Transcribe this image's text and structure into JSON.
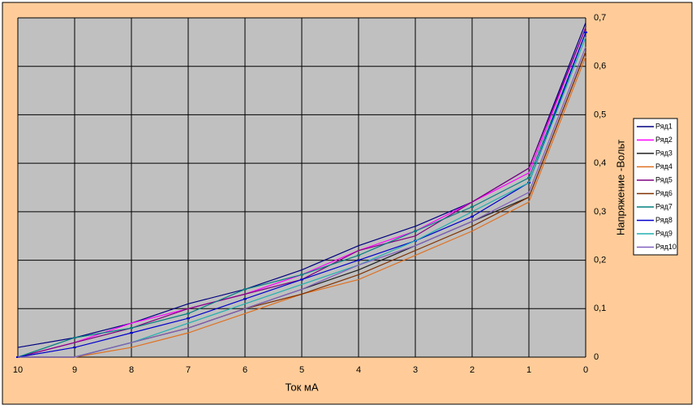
{
  "chart_data": {
    "type": "line",
    "x": [
      10,
      9,
      8,
      7,
      6,
      5,
      4,
      3,
      2,
      1,
      0
    ],
    "xlim": [
      10,
      0
    ],
    "xticks": [
      10,
      9,
      8,
      7,
      6,
      5,
      4,
      3,
      2,
      1,
      0
    ],
    "ylim": [
      0,
      0.7
    ],
    "yticks": [
      0,
      {
        "value": 0.1,
        "label": "0,1"
      },
      {
        "value": 0.2,
        "label": "0,2"
      },
      {
        "value": 0.3,
        "label": "0,3"
      },
      {
        "value": 0.4,
        "label": "0,4"
      },
      {
        "value": 0.5,
        "label": "0,5"
      },
      {
        "value": 0.6,
        "label": "0,6"
      },
      {
        "value": 0.7,
        "label": "0,7"
      }
    ],
    "x_label": "Ток мА",
    "y_label": "Напряжение -Вольт",
    "grid": true,
    "legend": "right",
    "series": [
      {
        "name": "Ряд1",
        "color": "#000080",
        "values": [
          0.02,
          0.04,
          0.07,
          0.11,
          0.14,
          0.18,
          0.23,
          0.27,
          0.32,
          0.39,
          0.69
        ]
      },
      {
        "name": "Ряд2",
        "color": "#ff00ff",
        "values": [
          0,
          0.03,
          0.07,
          0.1,
          0.13,
          0.17,
          0.22,
          0.26,
          0.32,
          0.38,
          0.68
        ]
      },
      {
        "name": "Ряд3",
        "color": "#202020",
        "values": [
          0,
          0,
          0.03,
          0.06,
          0.1,
          0.14,
          0.18,
          0.23,
          0.28,
          0.33,
          0.63
        ]
      },
      {
        "name": "Ряд4",
        "color": "#e07020",
        "values": [
          0,
          0,
          0.02,
          0.05,
          0.09,
          0.13,
          0.16,
          0.21,
          0.26,
          0.32,
          0.62
        ]
      },
      {
        "name": "Ряд5",
        "color": "#800080",
        "values": [
          0,
          0.03,
          0.06,
          0.1,
          0.13,
          0.16,
          0.22,
          0.25,
          0.32,
          0.39,
          0.68
        ]
      },
      {
        "name": "Ряд6",
        "color": "#803000",
        "values": [
          0,
          0,
          0.03,
          0.06,
          0.1,
          0.13,
          0.17,
          0.22,
          0.27,
          0.33,
          0.63
        ]
      },
      {
        "name": "Ряд7",
        "color": "#008080",
        "marker": true,
        "values": [
          0,
          0.04,
          0.06,
          0.09,
          0.14,
          0.17,
          0.21,
          0.26,
          0.31,
          0.37,
          0.67
        ]
      },
      {
        "name": "Ряд8",
        "color": "#0000cc",
        "marker": true,
        "values": [
          0,
          0.02,
          0.05,
          0.08,
          0.12,
          0.16,
          0.2,
          0.24,
          0.29,
          0.36,
          0.67
        ]
      },
      {
        "name": "Ряд9",
        "color": "#20b0b0",
        "values": [
          0,
          0,
          0.03,
          0.07,
          0.11,
          0.15,
          0.19,
          0.24,
          0.3,
          0.36,
          0.66
        ]
      },
      {
        "name": "Ряд10",
        "color": "#8060c0",
        "values": [
          0,
          0,
          0.03,
          0.06,
          0.1,
          0.14,
          0.19,
          0.23,
          0.28,
          0.34,
          0.64
        ]
      }
    ]
  }
}
